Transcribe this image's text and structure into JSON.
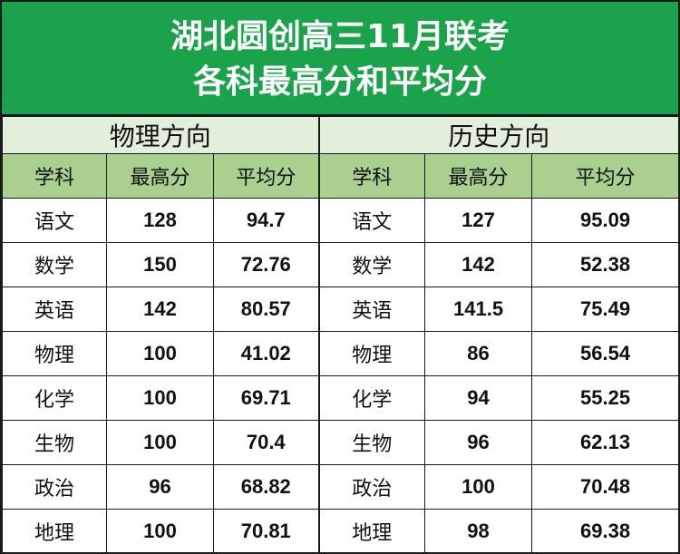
{
  "title": {
    "line1": "湖北圆创高三11月联考",
    "line2": "各科最高分和平均分"
  },
  "sections": {
    "physics": "物理方向",
    "history": "历史方向"
  },
  "columns": {
    "subject": "学科",
    "max": "最高分",
    "avg": "平均分"
  },
  "physics_rows": [
    {
      "subject": "语文",
      "max": "128",
      "avg": "94.7"
    },
    {
      "subject": "数学",
      "max": "150",
      "avg": "72.76"
    },
    {
      "subject": "英语",
      "max": "142",
      "avg": "80.57"
    },
    {
      "subject": "物理",
      "max": "100",
      "avg": "41.02"
    },
    {
      "subject": "化学",
      "max": "100",
      "avg": "69.71"
    },
    {
      "subject": "生物",
      "max": "100",
      "avg": "70.4"
    },
    {
      "subject": "政治",
      "max": "96",
      "avg": "68.82"
    },
    {
      "subject": "地理",
      "max": "100",
      "avg": "70.81"
    }
  ],
  "history_rows": [
    {
      "subject": "语文",
      "max": "127",
      "avg": "95.09"
    },
    {
      "subject": "数学",
      "max": "142",
      "avg": "52.38"
    },
    {
      "subject": "英语",
      "max": "141.5",
      "avg": "75.49"
    },
    {
      "subject": "物理",
      "max": "86",
      "avg": "56.54"
    },
    {
      "subject": "化学",
      "max": "94",
      "avg": "55.25"
    },
    {
      "subject": "生物",
      "max": "96",
      "avg": "62.13"
    },
    {
      "subject": "政治",
      "max": "100",
      "avg": "70.48"
    },
    {
      "subject": "地理",
      "max": "98",
      "avg": "69.38"
    }
  ],
  "colors": {
    "banner": "#1aa34a",
    "section_header": "#e2efda",
    "column_header": "#a9d08e"
  }
}
